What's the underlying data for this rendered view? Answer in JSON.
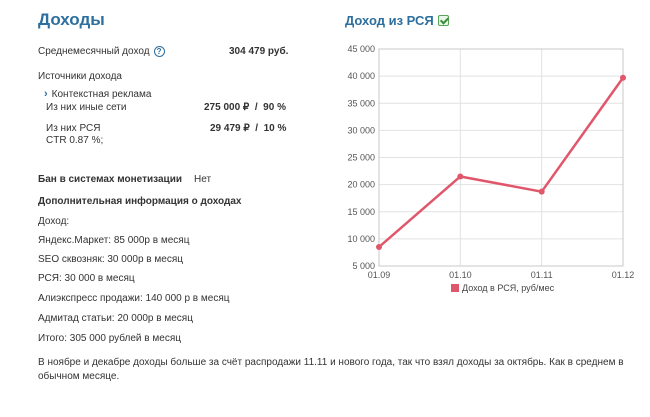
{
  "header": {
    "title": "Доходы"
  },
  "income": {
    "avg_label": "Среднемесячный доход",
    "help_symbol": "?",
    "avg_value": "304 479 руб.",
    "sources_label": "Источники дохода",
    "context_ads_label": "Контекстная реклама",
    "other_networks_label": "Из них иные сети",
    "other_networks_value": "275 000 ₽  /  90 %",
    "rsya_label": "Из них РСЯ",
    "rsya_value": "29 479 ₽  /  10 %",
    "ctr": "CTR 0.87 %;"
  },
  "ban": {
    "label": "Бан в системах монетизации",
    "value": "Нет"
  },
  "additional": {
    "heading": "Дополнительная информация о доходах",
    "lines": [
      "Доход:",
      "Яндекс.Маркет: 85 000р в месяц",
      "SEO сквозняк: 30 000р в месяц",
      "РСЯ: 30 000 в месяц",
      "Алиэкспресс продажи: 140 000 р в месяц",
      "Адмитад статьи: 20 000р в месяц",
      "Итого: 305 000 рублей в месяц"
    ],
    "note": "В ноябре и декабре доходы больше за счёт распродажи 11.11 и нового года, так что взял доходы за октябрь. Как в среднем в обычном месяце."
  },
  "chart_header": {
    "title": "Доход из РСЯ"
  },
  "chart_data": {
    "type": "line",
    "title": "Доход из РСЯ",
    "categories": [
      "01.09",
      "01.10",
      "01.11",
      "01.12"
    ],
    "series": [
      {
        "name": "Доход в РСЯ, руб/мес",
        "color": "#e0566b",
        "values": [
          8500,
          21500,
          18700,
          39700
        ]
      }
    ],
    "ylim": [
      5000,
      45000
    ],
    "yticks": [
      "5 000",
      "10 000",
      "15 000",
      "20 000",
      "25 000",
      "30 000",
      "35 000",
      "40 000",
      "45 000"
    ],
    "ytick_values": [
      5000,
      10000,
      15000,
      20000,
      25000,
      30000,
      35000,
      40000,
      45000
    ],
    "grid": true,
    "legend": "bottom"
  }
}
